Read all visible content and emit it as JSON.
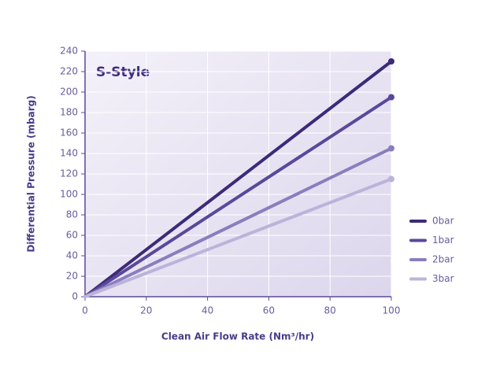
{
  "chart_data": {
    "type": "line",
    "title": "S-Style",
    "x_label": "Clean Air Flow Rate (Nm³/hr)",
    "y_label": "Differential Pressure (mbarg)",
    "x": [
      0,
      100
    ],
    "series": [
      {
        "name": "0bar",
        "color": "#3d2a78",
        "values": [
          0,
          230
        ]
      },
      {
        "name": "1bar",
        "color": "#5b489b",
        "values": [
          0,
          195
        ]
      },
      {
        "name": "2bar",
        "color": "#8b7dbd",
        "values": [
          0,
          145
        ]
      },
      {
        "name": "3bar",
        "color": "#bcb3da",
        "values": [
          0,
          115
        ]
      }
    ],
    "xlim": [
      0,
      100
    ],
    "xticks": [
      0,
      20,
      40,
      60,
      80,
      100
    ],
    "ylim": [
      0,
      240
    ],
    "yticks": [
      0,
      20,
      40,
      60,
      80,
      100,
      120,
      140,
      160,
      180,
      200,
      220,
      240
    ],
    "grid": true,
    "legend": "right"
  }
}
